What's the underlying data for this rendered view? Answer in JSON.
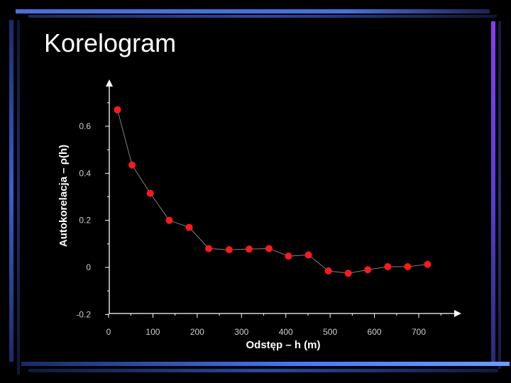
{
  "slide": {
    "title": "Korelogram"
  },
  "colors": {
    "background": "#000000",
    "points": "#ff1a1a",
    "line": "#808080",
    "axis": "#ffffff"
  },
  "chart_data": {
    "type": "line",
    "title": "",
    "xlabel": "Odstęp – h (m)",
    "ylabel": "Autokorelacja – ρ(h)",
    "xlim": [
      0,
      740
    ],
    "ylim": [
      -0.2,
      0.8
    ],
    "xticks": [
      0,
      100,
      200,
      300,
      400,
      500,
      600,
      700
    ],
    "yticks": [
      -0.2,
      0,
      0.2,
      0.4,
      0.6
    ],
    "xtick_labels": [
      "0",
      "100",
      "200",
      "300",
      "400",
      "500",
      "600",
      "700"
    ],
    "ytick_labels": [
      "-0.2",
      "0",
      "0.2",
      "0.4",
      "0.6"
    ],
    "grid": false,
    "series": [
      {
        "x": [
          20,
          53,
          94,
          137,
          182,
          226,
          272,
          317,
          362,
          406,
          451,
          496,
          541,
          585,
          630,
          675,
          720
        ],
        "y": [
          0.67,
          0.435,
          0.315,
          0.2,
          0.17,
          0.08,
          0.075,
          0.078,
          0.08,
          0.048,
          0.053,
          -0.015,
          -0.025,
          -0.01,
          0.003,
          0.003,
          0.013
        ]
      }
    ]
  }
}
